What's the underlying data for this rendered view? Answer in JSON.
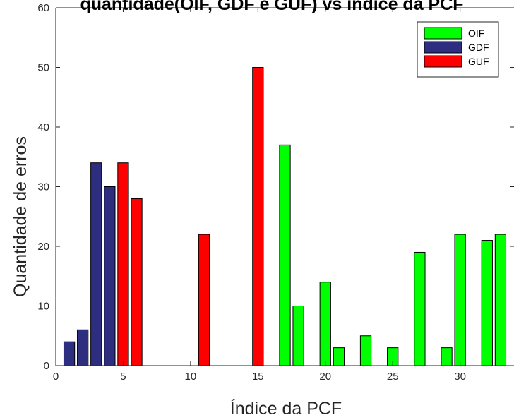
{
  "chart_data": {
    "type": "bar",
    "title": "quantidade(OIF, GDF e GUF) vs índice da PCF",
    "xlabel": "Índice da PCF",
    "ylabel": "Quantidade de erros",
    "xlim": [
      0,
      34
    ],
    "ylim": [
      0,
      60
    ],
    "xticks": [
      0,
      5,
      10,
      15,
      20,
      25,
      30
    ],
    "yticks": [
      0,
      10,
      20,
      30,
      40,
      50,
      60
    ],
    "grid": false,
    "legend_position": "top-right",
    "series": [
      {
        "name": "OIF",
        "color": "#00ff00",
        "x": [
          17,
          18,
          20,
          21,
          23,
          25,
          27,
          29,
          30,
          32,
          33
        ],
        "values": [
          37,
          10,
          14,
          3,
          5,
          3,
          19,
          3,
          22,
          21,
          22
        ]
      },
      {
        "name": "GDF",
        "color": "#2e2e80",
        "x": [
          1,
          2,
          3,
          4
        ],
        "values": [
          4,
          6,
          34,
          30
        ]
      },
      {
        "name": "GUF",
        "color": "#ff0000",
        "x": [
          5,
          6,
          11,
          15
        ],
        "values": [
          34,
          28,
          22,
          50
        ]
      }
    ]
  }
}
